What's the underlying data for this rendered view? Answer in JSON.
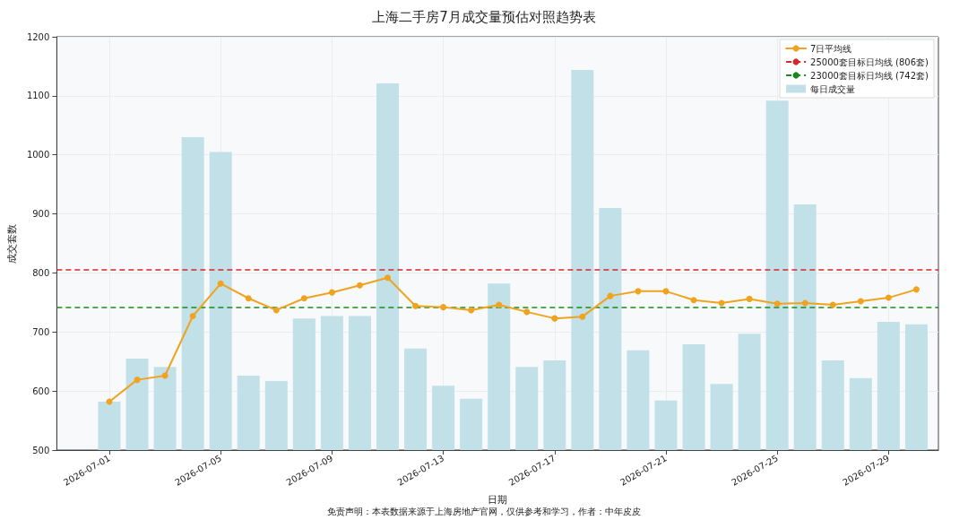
{
  "chart_data": {
    "type": "bar",
    "title": "上海二手房7月成交量预估对照趋势表",
    "xlabel": "日期",
    "ylabel": "成交套数",
    "x": [
      "2026-07-01",
      "2026-07-02",
      "2026-07-03",
      "2026-07-04",
      "2026-07-05",
      "2026-07-06",
      "2026-07-07",
      "2026-07-08",
      "2026-07-09",
      "2026-07-10",
      "2026-07-11",
      "2026-07-12",
      "2026-07-13",
      "2026-07-14",
      "2026-07-15",
      "2026-07-16",
      "2026-07-17",
      "2026-07-18",
      "2026-07-19",
      "2026-07-20",
      "2026-07-21",
      "2026-07-22",
      "2026-07-23",
      "2026-07-24",
      "2026-07-25",
      "2026-07-26",
      "2026-07-27",
      "2026-07-28",
      "2026-07-29",
      "2026-07-30"
    ],
    "series": [
      {
        "name": "7日平均线",
        "type": "line",
        "color": "#f0a31e",
        "marker": "circle",
        "line_style": "solid",
        "values": [
          582,
          619,
          626,
          727,
          782,
          757,
          737,
          757,
          767,
          779,
          792,
          744,
          742,
          737,
          746,
          734,
          723,
          726,
          761,
          769,
          769,
          754,
          749,
          756,
          748,
          749,
          746,
          752,
          758,
          772
        ]
      },
      {
        "name": "每日成交量",
        "color": "#c2e0e8",
        "values": [
          582,
          655,
          641,
          1030,
          1005,
          626,
          617,
          723,
          727,
          727,
          1121,
          672,
          609,
          587,
          782,
          641,
          652,
          1144,
          910,
          669,
          584,
          679,
          612,
          697,
          1092,
          916,
          652,
          622,
          717,
          713
        ]
      }
    ],
    "ref_lines": [
      {
        "axis": "y",
        "value": 806,
        "label": "25000套目标日均线 (806套)",
        "color": "#d62728",
        "line_style": "dashed"
      },
      {
        "axis": "y",
        "value": 742,
        "label": "23000套目标日均线 (742套)",
        "color": "#1a8a1a",
        "line_style": "dashed"
      }
    ],
    "xlim": [
      "2026-06-29T02:40",
      "2026-07-30T19:00"
    ],
    "xticks": [
      "2026-07-01",
      "2026-07-05",
      "2026-07-09",
      "2026-07-13",
      "2026-07-17",
      "2026-07-21",
      "2026-07-25",
      "2026-07-29"
    ],
    "ylim": [
      500,
      1200
    ],
    "yticks": [
      500,
      600,
      700,
      800,
      900,
      1000,
      1100,
      1200
    ],
    "grid": true,
    "legend": "top right",
    "annotations": [
      "免责声明：本表数据来源于上海房地产官网，仅供参考和学习，作者：中年皮皮"
    ]
  }
}
